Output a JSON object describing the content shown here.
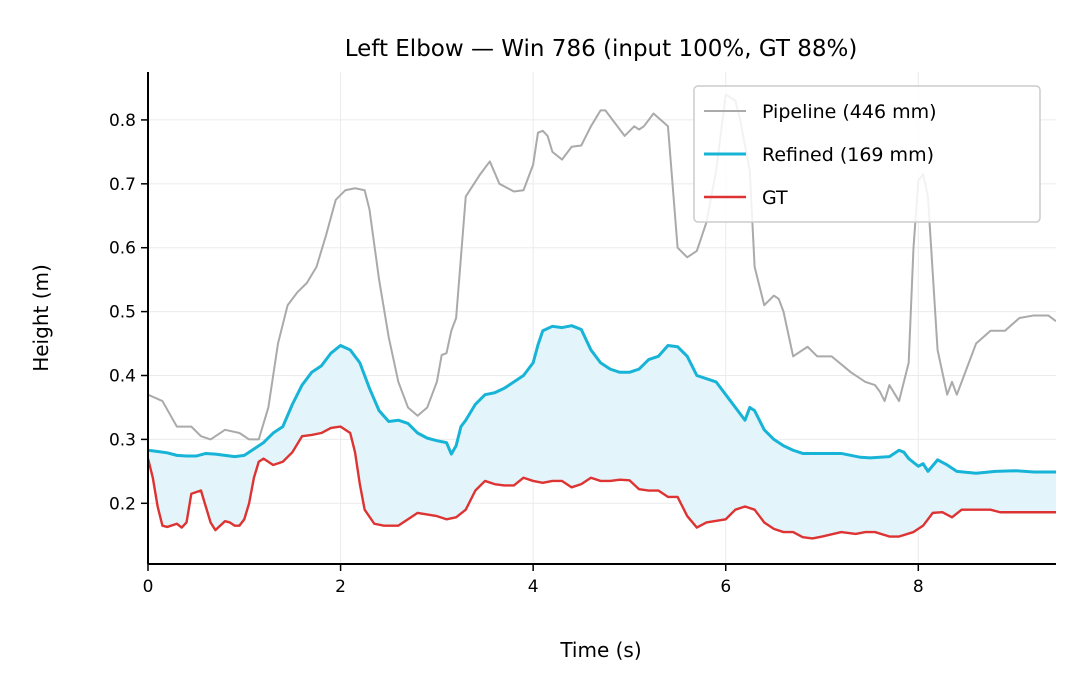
{
  "chart_data": {
    "type": "line",
    "title": "Left Elbow — Win 786  (input 100%, GT 88%)",
    "xlabel": "Time (s)",
    "ylabel": "Height (m)",
    "xlim": [
      0,
      9.43
    ],
    "ylim": [
      0.105,
      0.875
    ],
    "xticks": [
      0,
      2,
      4,
      6,
      8
    ],
    "yticks": [
      0.2,
      0.3,
      0.4,
      0.5,
      0.6,
      0.7,
      0.8
    ],
    "grid": true,
    "legend_position": "top-right",
    "fill_between": {
      "series": [
        "Refined (169 mm)",
        "GT"
      ],
      "color": "#e3f5fa"
    },
    "series": [
      {
        "name": "Pipeline (446 mm)",
        "color": "#aaaaaa",
        "x": [
          0,
          0.15,
          0.3,
          0.45,
          0.55,
          0.65,
          0.8,
          0.95,
          1.05,
          1.15,
          1.25,
          1.35,
          1.45,
          1.55,
          1.65,
          1.75,
          1.85,
          1.95,
          2.05,
          2.15,
          2.25,
          2.3,
          2.4,
          2.5,
          2.6,
          2.7,
          2.8,
          2.9,
          3.0,
          3.05,
          3.1,
          3.15,
          3.2,
          3.3,
          3.45,
          3.55,
          3.65,
          3.8,
          3.9,
          4.0,
          4.05,
          4.1,
          4.15,
          4.2,
          4.3,
          4.4,
          4.5,
          4.6,
          4.7,
          4.75,
          4.85,
          4.95,
          5.05,
          5.1,
          5.15,
          5.25,
          5.4,
          5.5,
          5.6,
          5.7,
          5.8,
          5.9,
          6.0,
          6.1,
          6.15,
          6.2,
          6.25,
          6.3,
          6.4,
          6.5,
          6.55,
          6.6,
          6.7,
          6.85,
          6.95,
          7.1,
          7.3,
          7.45,
          7.55,
          7.6,
          7.65,
          7.7,
          7.8,
          7.9,
          7.95,
          8.0,
          8.05,
          8.1,
          8.15,
          8.2,
          8.3,
          8.35,
          8.4,
          8.5,
          8.6,
          8.75,
          8.9,
          9.05,
          9.2,
          9.35,
          9.43
        ],
        "y": [
          0.37,
          0.36,
          0.32,
          0.32,
          0.305,
          0.3,
          0.315,
          0.31,
          0.3,
          0.3,
          0.35,
          0.45,
          0.51,
          0.53,
          0.545,
          0.57,
          0.62,
          0.675,
          0.69,
          0.693,
          0.69,
          0.66,
          0.55,
          0.46,
          0.39,
          0.35,
          0.337,
          0.35,
          0.39,
          0.432,
          0.435,
          0.47,
          0.49,
          0.68,
          0.715,
          0.735,
          0.7,
          0.688,
          0.69,
          0.73,
          0.78,
          0.783,
          0.775,
          0.75,
          0.738,
          0.758,
          0.76,
          0.79,
          0.815,
          0.815,
          0.795,
          0.775,
          0.79,
          0.785,
          0.79,
          0.81,
          0.79,
          0.6,
          0.585,
          0.595,
          0.64,
          0.72,
          0.84,
          0.83,
          0.8,
          0.76,
          0.72,
          0.57,
          0.51,
          0.525,
          0.52,
          0.5,
          0.43,
          0.445,
          0.43,
          0.43,
          0.405,
          0.39,
          0.385,
          0.375,
          0.36,
          0.385,
          0.36,
          0.42,
          0.6,
          0.705,
          0.715,
          0.68,
          0.56,
          0.44,
          0.37,
          0.39,
          0.37,
          0.41,
          0.45,
          0.47,
          0.47,
          0.49,
          0.494,
          0.494,
          0.485
        ]
      },
      {
        "name": "Refined (169 mm)",
        "color": "#17b4d7",
        "x": [
          0,
          0.1,
          0.2,
          0.3,
          0.4,
          0.5,
          0.6,
          0.7,
          0.8,
          0.9,
          1.0,
          1.1,
          1.2,
          1.3,
          1.4,
          1.5,
          1.6,
          1.7,
          1.8,
          1.9,
          2.0,
          2.1,
          2.2,
          2.3,
          2.4,
          2.5,
          2.6,
          2.7,
          2.8,
          2.9,
          3.0,
          3.1,
          3.15,
          3.2,
          3.25,
          3.3,
          3.4,
          3.5,
          3.6,
          3.7,
          3.8,
          3.9,
          4.0,
          4.05,
          4.1,
          4.2,
          4.3,
          4.4,
          4.5,
          4.6,
          4.7,
          4.8,
          4.9,
          5.0,
          5.1,
          5.2,
          5.3,
          5.4,
          5.5,
          5.6,
          5.7,
          5.8,
          5.9,
          6.0,
          6.1,
          6.2,
          6.25,
          6.3,
          6.4,
          6.5,
          6.6,
          6.7,
          6.8,
          7.0,
          7.2,
          7.4,
          7.5,
          7.7,
          7.8,
          7.85,
          7.9,
          8.0,
          8.05,
          8.1,
          8.2,
          8.3,
          8.4,
          8.6,
          8.8,
          9.0,
          9.2,
          9.43
        ],
        "y": [
          0.283,
          0.281,
          0.279,
          0.275,
          0.274,
          0.274,
          0.278,
          0.277,
          0.275,
          0.273,
          0.275,
          0.285,
          0.295,
          0.31,
          0.32,
          0.355,
          0.385,
          0.405,
          0.415,
          0.435,
          0.447,
          0.44,
          0.42,
          0.38,
          0.345,
          0.328,
          0.33,
          0.325,
          0.31,
          0.302,
          0.298,
          0.295,
          0.277,
          0.29,
          0.32,
          0.33,
          0.355,
          0.37,
          0.373,
          0.38,
          0.39,
          0.4,
          0.42,
          0.448,
          0.47,
          0.477,
          0.475,
          0.478,
          0.472,
          0.44,
          0.42,
          0.41,
          0.405,
          0.405,
          0.41,
          0.425,
          0.43,
          0.447,
          0.445,
          0.43,
          0.4,
          0.395,
          0.39,
          0.37,
          0.35,
          0.33,
          0.35,
          0.345,
          0.315,
          0.3,
          0.29,
          0.283,
          0.278,
          0.278,
          0.278,
          0.272,
          0.271,
          0.273,
          0.283,
          0.28,
          0.27,
          0.258,
          0.262,
          0.25,
          0.268,
          0.26,
          0.25,
          0.247,
          0.25,
          0.251,
          0.249,
          0.249
        ]
      },
      {
        "name": "GT",
        "color": "#dd3333",
        "x": [
          0,
          0.05,
          0.1,
          0.15,
          0.2,
          0.3,
          0.35,
          0.4,
          0.45,
          0.55,
          0.6,
          0.65,
          0.7,
          0.8,
          0.85,
          0.9,
          0.95,
          1.0,
          1.05,
          1.1,
          1.15,
          1.2,
          1.3,
          1.4,
          1.5,
          1.6,
          1.7,
          1.8,
          1.9,
          2.0,
          2.1,
          2.15,
          2.2,
          2.25,
          2.35,
          2.45,
          2.6,
          2.8,
          3.0,
          3.1,
          3.2,
          3.3,
          3.4,
          3.5,
          3.6,
          3.7,
          3.8,
          3.9,
          4.0,
          4.1,
          4.2,
          4.3,
          4.4,
          4.5,
          4.6,
          4.7,
          4.8,
          4.9,
          5.0,
          5.1,
          5.2,
          5.3,
          5.4,
          5.5,
          5.6,
          5.7,
          5.8,
          6.0,
          6.1,
          6.2,
          6.3,
          6.4,
          6.5,
          6.6,
          6.7,
          6.8,
          6.9,
          7.0,
          7.2,
          7.35,
          7.45,
          7.55,
          7.7,
          7.8,
          7.95,
          8.05,
          8.15,
          8.25,
          8.35,
          8.45,
          8.55,
          8.65,
          8.75,
          8.85,
          9.0,
          9.2,
          9.3,
          9.43
        ],
        "y": [
          0.27,
          0.24,
          0.195,
          0.165,
          0.163,
          0.168,
          0.162,
          0.17,
          0.215,
          0.22,
          0.195,
          0.17,
          0.158,
          0.172,
          0.17,
          0.165,
          0.165,
          0.175,
          0.2,
          0.24,
          0.265,
          0.27,
          0.26,
          0.265,
          0.28,
          0.305,
          0.307,
          0.31,
          0.318,
          0.32,
          0.31,
          0.28,
          0.23,
          0.19,
          0.168,
          0.165,
          0.165,
          0.185,
          0.18,
          0.175,
          0.178,
          0.19,
          0.22,
          0.235,
          0.23,
          0.228,
          0.228,
          0.24,
          0.235,
          0.232,
          0.235,
          0.235,
          0.225,
          0.23,
          0.24,
          0.235,
          0.235,
          0.237,
          0.236,
          0.222,
          0.22,
          0.22,
          0.21,
          0.21,
          0.18,
          0.162,
          0.17,
          0.175,
          0.19,
          0.195,
          0.19,
          0.17,
          0.16,
          0.155,
          0.155,
          0.147,
          0.145,
          0.148,
          0.155,
          0.152,
          0.155,
          0.155,
          0.148,
          0.148,
          0.155,
          0.165,
          0.185,
          0.186,
          0.178,
          0.19,
          0.19,
          0.19,
          0.19,
          0.186,
          0.186,
          0.186,
          0.186,
          0.186
        ]
      }
    ],
    "legend": [
      {
        "label": "Pipeline (446 mm)",
        "color": "#aaaaaa"
      },
      {
        "label": "Refined (169 mm)",
        "color": "#17b4d7"
      },
      {
        "label": "GT",
        "color": "#dd3333"
      }
    ]
  }
}
